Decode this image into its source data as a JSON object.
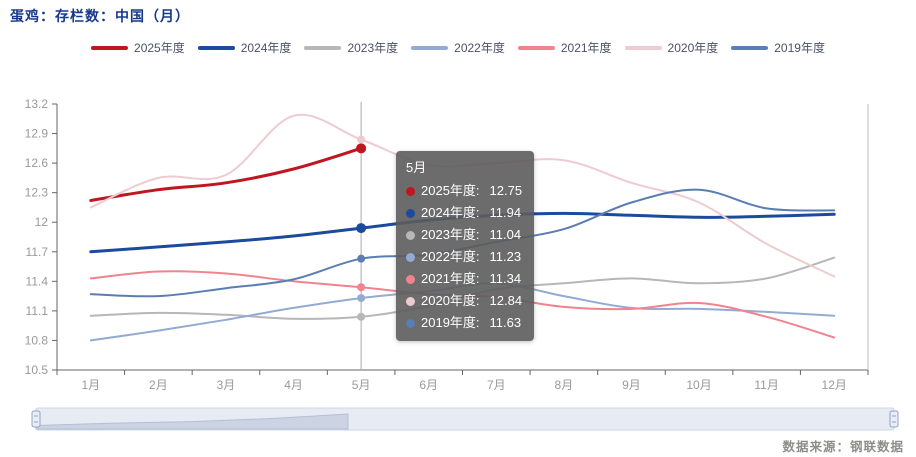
{
  "title": "蛋鸡：存栏数：中国（月）",
  "title_color": "#17388c",
  "source": "数据来源：钢联数据",
  "chart_data": {
    "type": "line",
    "title": "蛋鸡：存栏数：中国（月）",
    "categories": [
      "1月",
      "2月",
      "3月",
      "4月",
      "5月",
      "6月",
      "7月",
      "8月",
      "9月",
      "10月",
      "11月",
      "12月"
    ],
    "ylim": [
      10.5,
      13.2
    ],
    "ytick_step": 0.3,
    "yticks": [
      "13.2",
      "12.9",
      "12.6",
      "12.3",
      "12",
      "11.7",
      "11.4",
      "11.1",
      "10.8",
      "10.5"
    ],
    "grid": false,
    "legend_position": "top",
    "smooth": true,
    "series": [
      {
        "name": "2025年度",
        "color": "#c0161f",
        "width": 3,
        "values": [
          12.22,
          12.33,
          12.4,
          12.54,
          12.75
        ]
      },
      {
        "name": "2024年度",
        "color": "#1b4a9e",
        "width": 3,
        "values": [
          11.7,
          11.75,
          11.8,
          11.86,
          11.94,
          12.02,
          12.07,
          12.09,
          12.07,
          12.05,
          12.06,
          12.08
        ]
      },
      {
        "name": "2023年度",
        "color": "#b7b7b7",
        "width": 2,
        "values": [
          11.05,
          11.08,
          11.06,
          11.02,
          11.04,
          11.15,
          11.32,
          11.38,
          11.43,
          11.38,
          11.43,
          11.64
        ]
      },
      {
        "name": "2022年度",
        "color": "#93abd3",
        "width": 2,
        "values": [
          10.8,
          10.9,
          11.01,
          11.13,
          11.23,
          11.3,
          11.38,
          11.25,
          11.13,
          11.12,
          11.09,
          11.05
        ]
      },
      {
        "name": "2021年度",
        "color": "#f0838e",
        "width": 2,
        "values": [
          11.43,
          11.5,
          11.48,
          11.4,
          11.34,
          11.27,
          11.24,
          11.14,
          11.12,
          11.18,
          11.04,
          10.83
        ]
      },
      {
        "name": "2020年度",
        "color": "#edccd0",
        "width": 2,
        "values": [
          12.15,
          12.45,
          12.48,
          13.08,
          12.84,
          12.58,
          12.6,
          12.63,
          12.4,
          12.2,
          11.78,
          11.45
        ]
      },
      {
        "name": "2019年度",
        "color": "#5a7db2",
        "width": 2,
        "values": [
          11.27,
          11.25,
          11.33,
          11.42,
          11.63,
          11.67,
          11.8,
          11.93,
          12.2,
          12.33,
          12.14,
          12.12
        ]
      }
    ]
  },
  "tooltip": {
    "title": "5月",
    "month_index": 4,
    "rows": [
      {
        "label": "2025年度",
        "value": "12.75",
        "color": "#c0161f"
      },
      {
        "label": "2024年度",
        "value": "11.94",
        "color": "#1b4a9e"
      },
      {
        "label": "2023年度",
        "value": "11.04",
        "color": "#b7b7b7"
      },
      {
        "label": "2022年度",
        "value": "11.23",
        "color": "#93abd3"
      },
      {
        "label": "2021年度",
        "value": "11.34",
        "color": "#f0838e"
      },
      {
        "label": "2020年度",
        "value": "12.84",
        "color": "#edccd0"
      },
      {
        "label": "2019年度",
        "value": "11.63",
        "color": "#5a7db2"
      }
    ]
  },
  "legend": [
    "2025年度",
    "2024年度",
    "2023年度",
    "2022年度",
    "2021年度",
    "2020年度",
    "2019年度"
  ],
  "colors": {
    "axis_line": "#666666",
    "axis_label": "#999999",
    "pointer_line": "#aaaaaa",
    "legend_text": "#4a5265",
    "slider_track": "#e7ebf4",
    "slider_border": "#ccd4e6",
    "slider_shadow_fill": "#ccd4e3",
    "slider_shadow_line": "#b4bfd5",
    "slider_handle": "#8fa3c6"
  }
}
